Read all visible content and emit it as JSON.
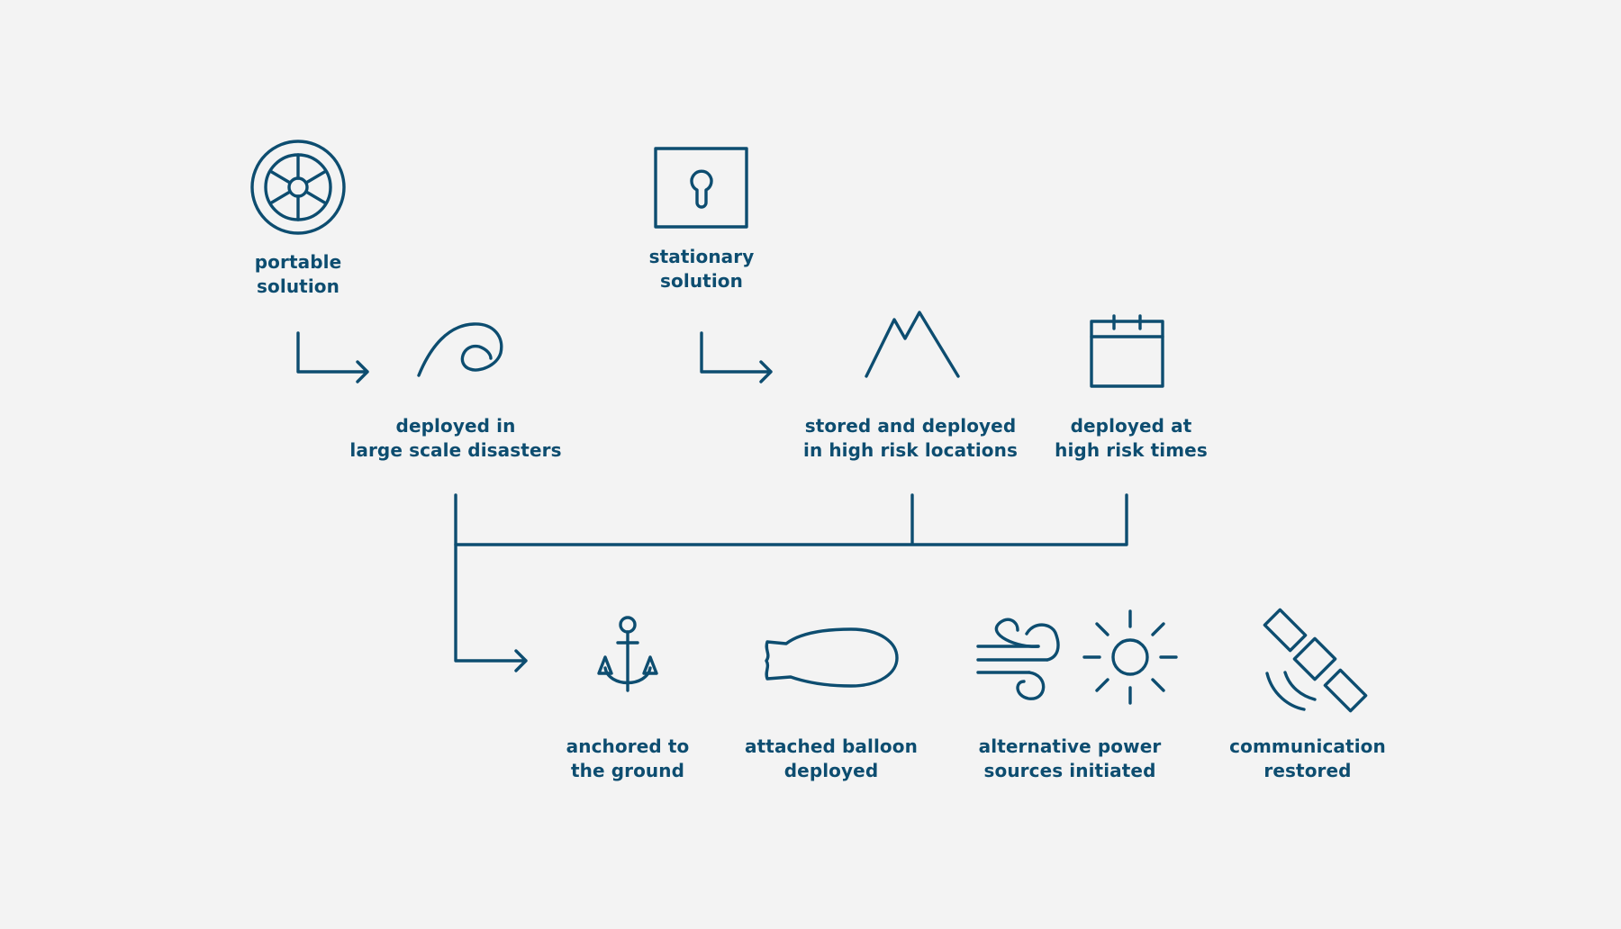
{
  "colors": {
    "background": "#f3f3f3",
    "stroke": "#0d4d70"
  },
  "nodes": {
    "portable": {
      "label": "portable\nsolution",
      "icon": "steering-wheel-icon"
    },
    "stationary": {
      "label": "stationary\nsolution",
      "icon": "keyhole-box-icon"
    },
    "large_scale": {
      "label": "deployed in\nlarge scale disasters",
      "icon": "wave-icon"
    },
    "high_risk_locations": {
      "label": "stored and deployed\nin high risk locations",
      "icon": "mountain-icon"
    },
    "high_risk_times": {
      "label": "deployed at\nhigh risk times",
      "icon": "calendar-icon"
    },
    "anchored": {
      "label": "anchored to\nthe ground",
      "icon": "anchor-icon"
    },
    "balloon": {
      "label": "attached balloon\ndeployed",
      "icon": "balloon-icon"
    },
    "power": {
      "label": "alternative power\nsources initiated",
      "icon": "wind-and-sun-icon"
    },
    "communication": {
      "label": "communication\nrestored",
      "icon": "satellite-icon"
    }
  }
}
